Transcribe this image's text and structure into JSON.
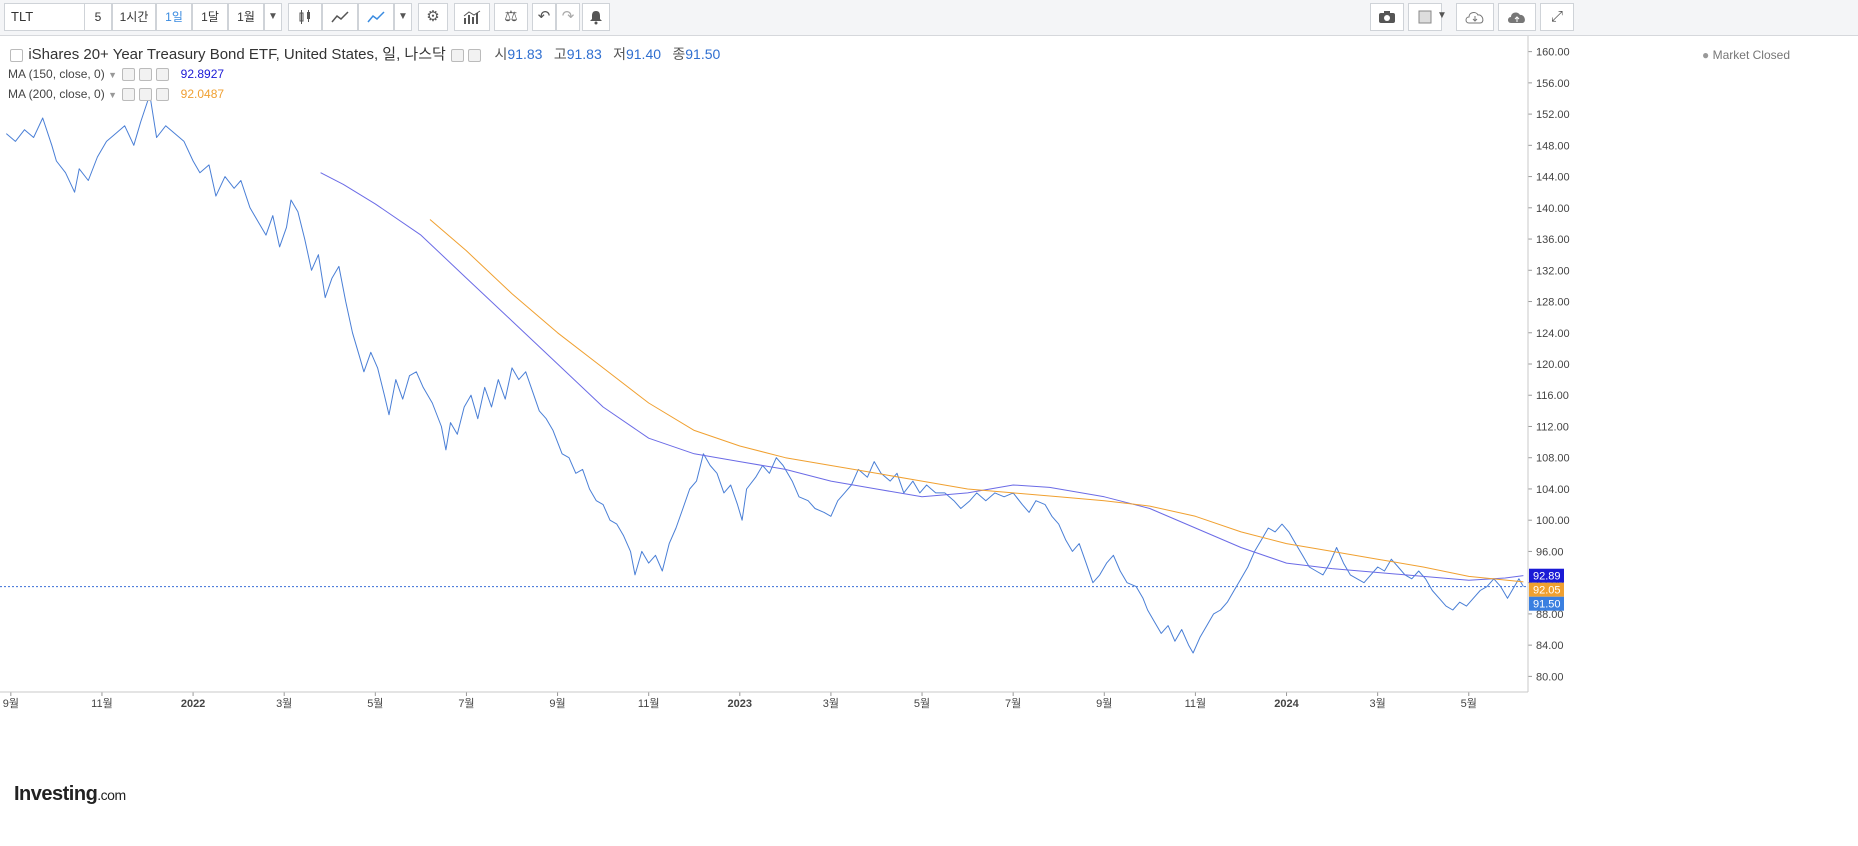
{
  "toolbar": {
    "symbol": "TLT",
    "intervals": [
      "5",
      "1시간",
      "1일",
      "1달",
      "1월"
    ],
    "active_interval": "1일",
    "icons": [
      "candle-icon",
      "line-chart-icon",
      "area-chart-icon",
      "dropdown-icon",
      "gear-icon",
      "indicators-icon",
      "compare-icon",
      "undo-icon",
      "redo-icon",
      "alert-icon",
      "camera-icon",
      "color-box-icon",
      "cloud-download-icon",
      "cloud-upload-icon",
      "fullscreen-icon"
    ]
  },
  "legend": {
    "title": "iShares 20+ Year Treasury Bond ETF, United States, 일, 나스닥",
    "ohlc": [
      {
        "k": "시",
        "v": "91.83"
      },
      {
        "k": "고",
        "v": "91.83"
      },
      {
        "k": "저",
        "v": "91.40"
      },
      {
        "k": "종",
        "v": "91.50"
      }
    ],
    "ma150_label": "MA (150, close, 0)",
    "ma150_value": "92.8927",
    "ma200_label": "MA (200, close, 0)",
    "ma200_value": "92.0487"
  },
  "market_status": "Market Closed",
  "logo": {
    "main": "Investing",
    "suffix": ".com"
  },
  "chart_data": {
    "type": "line",
    "ylim": [
      78,
      162
    ],
    "y_ticks": [
      80,
      84,
      88,
      92,
      96,
      100,
      104,
      108,
      112,
      116,
      120,
      124,
      128,
      132,
      136,
      140,
      144,
      148,
      152,
      156,
      160
    ],
    "x_ticks": [
      {
        "label": "9월",
        "t": 0.0
      },
      {
        "label": "11월",
        "t": 2.0
      },
      {
        "label": "2022",
        "t": 4.0
      },
      {
        "label": "3월",
        "t": 6.0
      },
      {
        "label": "5월",
        "t": 8.0
      },
      {
        "label": "7월",
        "t": 10.0
      },
      {
        "label": "9월",
        "t": 12.0
      },
      {
        "label": "11월",
        "t": 14.0
      },
      {
        "label": "2023",
        "t": 16.0
      },
      {
        "label": "3월",
        "t": 18.0
      },
      {
        "label": "5월",
        "t": 20.0
      },
      {
        "label": "7월",
        "t": 22.0
      },
      {
        "label": "9월",
        "t": 24.0
      },
      {
        "label": "11월",
        "t": 26.0
      },
      {
        "label": "2024",
        "t": 28.0
      },
      {
        "label": "3월",
        "t": 30.0
      },
      {
        "label": "5월",
        "t": 32.0
      }
    ],
    "x_range": [
      -0.15,
      33.3
    ],
    "series": [
      {
        "name": "TLT",
        "color": "#4a7fd6",
        "points": [
          [
            -0.1,
            149.5
          ],
          [
            0.1,
            148.5
          ],
          [
            0.3,
            150
          ],
          [
            0.5,
            149
          ],
          [
            0.7,
            151.5
          ],
          [
            0.9,
            148
          ],
          [
            1.0,
            146
          ],
          [
            1.2,
            144.5
          ],
          [
            1.4,
            142
          ],
          [
            1.5,
            145
          ],
          [
            1.7,
            143.5
          ],
          [
            1.9,
            146.5
          ],
          [
            2.1,
            148.5
          ],
          [
            2.3,
            149.5
          ],
          [
            2.5,
            150.5
          ],
          [
            2.7,
            148
          ],
          [
            2.85,
            151
          ],
          [
            3.05,
            154.5
          ],
          [
            3.2,
            149
          ],
          [
            3.4,
            150.5
          ],
          [
            3.6,
            149.5
          ],
          [
            3.8,
            148.5
          ],
          [
            4.0,
            146
          ],
          [
            4.15,
            144.5
          ],
          [
            4.35,
            145.5
          ],
          [
            4.5,
            141.5
          ],
          [
            4.7,
            144
          ],
          [
            4.9,
            142.5
          ],
          [
            5.05,
            143.5
          ],
          [
            5.25,
            140
          ],
          [
            5.45,
            138
          ],
          [
            5.6,
            136.5
          ],
          [
            5.75,
            139
          ],
          [
            5.9,
            135
          ],
          [
            6.05,
            137.5
          ],
          [
            6.15,
            141
          ],
          [
            6.3,
            139.5
          ],
          [
            6.45,
            136
          ],
          [
            6.6,
            132
          ],
          [
            6.75,
            134
          ],
          [
            6.9,
            128.5
          ],
          [
            7.05,
            131
          ],
          [
            7.2,
            132.5
          ],
          [
            7.35,
            128
          ],
          [
            7.5,
            124
          ],
          [
            7.65,
            121
          ],
          [
            7.75,
            119
          ],
          [
            7.9,
            121.5
          ],
          [
            8.05,
            119.5
          ],
          [
            8.2,
            116
          ],
          [
            8.3,
            113.5
          ],
          [
            8.45,
            118
          ],
          [
            8.6,
            115.5
          ],
          [
            8.75,
            118.5
          ],
          [
            8.9,
            119
          ],
          [
            9.05,
            117
          ],
          [
            9.25,
            115
          ],
          [
            9.45,
            112
          ],
          [
            9.55,
            109
          ],
          [
            9.65,
            112.5
          ],
          [
            9.8,
            111
          ],
          [
            9.95,
            114.5
          ],
          [
            10.1,
            116
          ],
          [
            10.25,
            113
          ],
          [
            10.4,
            117
          ],
          [
            10.55,
            114.5
          ],
          [
            10.7,
            118
          ],
          [
            10.85,
            115.5
          ],
          [
            11.0,
            119.5
          ],
          [
            11.15,
            118
          ],
          [
            11.3,
            119
          ],
          [
            11.45,
            116.5
          ],
          [
            11.6,
            114
          ],
          [
            11.75,
            113
          ],
          [
            11.9,
            111.5
          ],
          [
            12.1,
            108.5
          ],
          [
            12.25,
            108
          ],
          [
            12.4,
            106
          ],
          [
            12.55,
            106.5
          ],
          [
            12.7,
            104
          ],
          [
            12.85,
            102.5
          ],
          [
            13.0,
            102
          ],
          [
            13.15,
            100
          ],
          [
            13.3,
            99.5
          ],
          [
            13.45,
            98
          ],
          [
            13.6,
            96
          ],
          [
            13.7,
            93
          ],
          [
            13.85,
            96
          ],
          [
            14.0,
            94.5
          ],
          [
            14.15,
            95.5
          ],
          [
            14.3,
            93.5
          ],
          [
            14.45,
            97
          ],
          [
            14.6,
            99
          ],
          [
            14.75,
            101.5
          ],
          [
            14.9,
            104
          ],
          [
            15.05,
            105
          ],
          [
            15.2,
            108.5
          ],
          [
            15.35,
            107
          ],
          [
            15.5,
            106
          ],
          [
            15.65,
            103.5
          ],
          [
            15.8,
            104.5
          ],
          [
            15.95,
            102
          ],
          [
            16.05,
            100
          ],
          [
            16.15,
            104
          ],
          [
            16.35,
            105.5
          ],
          [
            16.5,
            107
          ],
          [
            16.65,
            106
          ],
          [
            16.8,
            108
          ],
          [
            16.95,
            107
          ],
          [
            17.15,
            105
          ],
          [
            17.3,
            103
          ],
          [
            17.5,
            102.5
          ],
          [
            17.65,
            101.5
          ],
          [
            17.85,
            101
          ],
          [
            18.0,
            100.5
          ],
          [
            18.15,
            102.5
          ],
          [
            18.3,
            103.5
          ],
          [
            18.45,
            104.5
          ],
          [
            18.6,
            106.5
          ],
          [
            18.8,
            105.5
          ],
          [
            18.95,
            107.5
          ],
          [
            19.1,
            106
          ],
          [
            19.3,
            105
          ],
          [
            19.45,
            106
          ],
          [
            19.6,
            103.5
          ],
          [
            19.8,
            105
          ],
          [
            19.95,
            103.5
          ],
          [
            20.1,
            104.5
          ],
          [
            20.3,
            103.5
          ],
          [
            20.5,
            103.5
          ],
          [
            20.7,
            102.5
          ],
          [
            20.85,
            101.5
          ],
          [
            21.05,
            102.5
          ],
          [
            21.2,
            103.5
          ],
          [
            21.4,
            102.5
          ],
          [
            21.6,
            103.5
          ],
          [
            21.8,
            103
          ],
          [
            22.0,
            103.5
          ],
          [
            22.2,
            102
          ],
          [
            22.35,
            101
          ],
          [
            22.5,
            102.5
          ],
          [
            22.7,
            102
          ],
          [
            22.85,
            100.5
          ],
          [
            23.0,
            99.5
          ],
          [
            23.15,
            97.5
          ],
          [
            23.3,
            96
          ],
          [
            23.45,
            97
          ],
          [
            23.6,
            94.5
          ],
          [
            23.75,
            92
          ],
          [
            23.9,
            93
          ],
          [
            24.05,
            94.5
          ],
          [
            24.2,
            95.5
          ],
          [
            24.35,
            93.5
          ],
          [
            24.5,
            92
          ],
          [
            24.7,
            91.5
          ],
          [
            24.85,
            90
          ],
          [
            24.95,
            88.5
          ],
          [
            25.1,
            87
          ],
          [
            25.25,
            85.5
          ],
          [
            25.4,
            86.5
          ],
          [
            25.55,
            84.5
          ],
          [
            25.7,
            86
          ],
          [
            25.85,
            84
          ],
          [
            25.95,
            83
          ],
          [
            26.1,
            85
          ],
          [
            26.25,
            86.5
          ],
          [
            26.4,
            88
          ],
          [
            26.55,
            88.5
          ],
          [
            26.7,
            89.5
          ],
          [
            26.85,
            91
          ],
          [
            27.0,
            92.5
          ],
          [
            27.15,
            94
          ],
          [
            27.3,
            96
          ],
          [
            27.45,
            97.5
          ],
          [
            27.6,
            99
          ],
          [
            27.75,
            98.5
          ],
          [
            27.9,
            99.5
          ],
          [
            28.05,
            98.5
          ],
          [
            28.2,
            97
          ],
          [
            28.35,
            95.5
          ],
          [
            28.5,
            94
          ],
          [
            28.65,
            93.5
          ],
          [
            28.8,
            93
          ],
          [
            28.95,
            94.5
          ],
          [
            29.1,
            96.5
          ],
          [
            29.25,
            94.5
          ],
          [
            29.4,
            93
          ],
          [
            29.55,
            92.5
          ],
          [
            29.7,
            92
          ],
          [
            29.85,
            93
          ],
          [
            30.0,
            94
          ],
          [
            30.15,
            93.5
          ],
          [
            30.3,
            95
          ],
          [
            30.45,
            94
          ],
          [
            30.6,
            93
          ],
          [
            30.75,
            92.5
          ],
          [
            30.9,
            93.5
          ],
          [
            31.05,
            92.5
          ],
          [
            31.2,
            91
          ],
          [
            31.35,
            90
          ],
          [
            31.5,
            89
          ],
          [
            31.65,
            88.5
          ],
          [
            31.8,
            89.5
          ],
          [
            31.95,
            89
          ],
          [
            32.1,
            90
          ],
          [
            32.25,
            91
          ],
          [
            32.4,
            91.5
          ],
          [
            32.55,
            92.5
          ],
          [
            32.7,
            91.5
          ],
          [
            32.85,
            90
          ],
          [
            33.0,
            91.5
          ],
          [
            33.1,
            92.5
          ],
          [
            33.2,
            91.5
          ]
        ]
      },
      {
        "name": "MA (150, close, 0)",
        "color": "#6b6be6",
        "points": [
          [
            6.8,
            144.5
          ],
          [
            7.3,
            143
          ],
          [
            8.0,
            140.5
          ],
          [
            9.0,
            136.5
          ],
          [
            10.0,
            131
          ],
          [
            11.0,
            125.5
          ],
          [
            12.0,
            120
          ],
          [
            13.0,
            114.5
          ],
          [
            14.0,
            110.5
          ],
          [
            15.0,
            108.5
          ],
          [
            16.0,
            107.5
          ],
          [
            17.0,
            106.5
          ],
          [
            18.0,
            105
          ],
          [
            19.0,
            104
          ],
          [
            20.0,
            103
          ],
          [
            21.0,
            103.5
          ],
          [
            22.0,
            104.5
          ],
          [
            22.8,
            104.2
          ],
          [
            24.0,
            103
          ],
          [
            25.0,
            101.5
          ],
          [
            26.0,
            99
          ],
          [
            27.0,
            96.5
          ],
          [
            28.0,
            94.5
          ],
          [
            29.0,
            93.8
          ],
          [
            30.0,
            93.3
          ],
          [
            31.0,
            92.8
          ],
          [
            32.0,
            92.3
          ],
          [
            32.8,
            92.6
          ],
          [
            33.2,
            92.9
          ]
        ]
      },
      {
        "name": "MA (200, close, 0)",
        "color": "#f0a030",
        "points": [
          [
            9.2,
            138.5
          ],
          [
            10.0,
            134.5
          ],
          [
            11.0,
            129
          ],
          [
            12.0,
            124
          ],
          [
            13.0,
            119.5
          ],
          [
            14.0,
            115
          ],
          [
            15.0,
            111.5
          ],
          [
            16.0,
            109.5
          ],
          [
            17.0,
            108
          ],
          [
            18.0,
            107
          ],
          [
            19.0,
            106
          ],
          [
            20.0,
            105
          ],
          [
            21.0,
            104
          ],
          [
            22.0,
            103.5
          ],
          [
            23.0,
            103
          ],
          [
            24.0,
            102.5
          ],
          [
            25.0,
            101.8
          ],
          [
            26.0,
            100.5
          ],
          [
            27.0,
            98.5
          ],
          [
            28.0,
            97
          ],
          [
            29.0,
            96
          ],
          [
            30.0,
            95
          ],
          [
            31.0,
            94
          ],
          [
            32.0,
            92.8
          ],
          [
            33.2,
            92.1
          ]
        ]
      }
    ],
    "price_tags": [
      {
        "label": "92.89",
        "value": 92.89,
        "color": "#1a1ad6"
      },
      {
        "label": "92.05",
        "value": 92.05,
        "color": "#f0a030"
      },
      {
        "label": "91.50",
        "value": 91.5,
        "color": "#3a7fe0"
      }
    ],
    "last_price": 91.5
  }
}
